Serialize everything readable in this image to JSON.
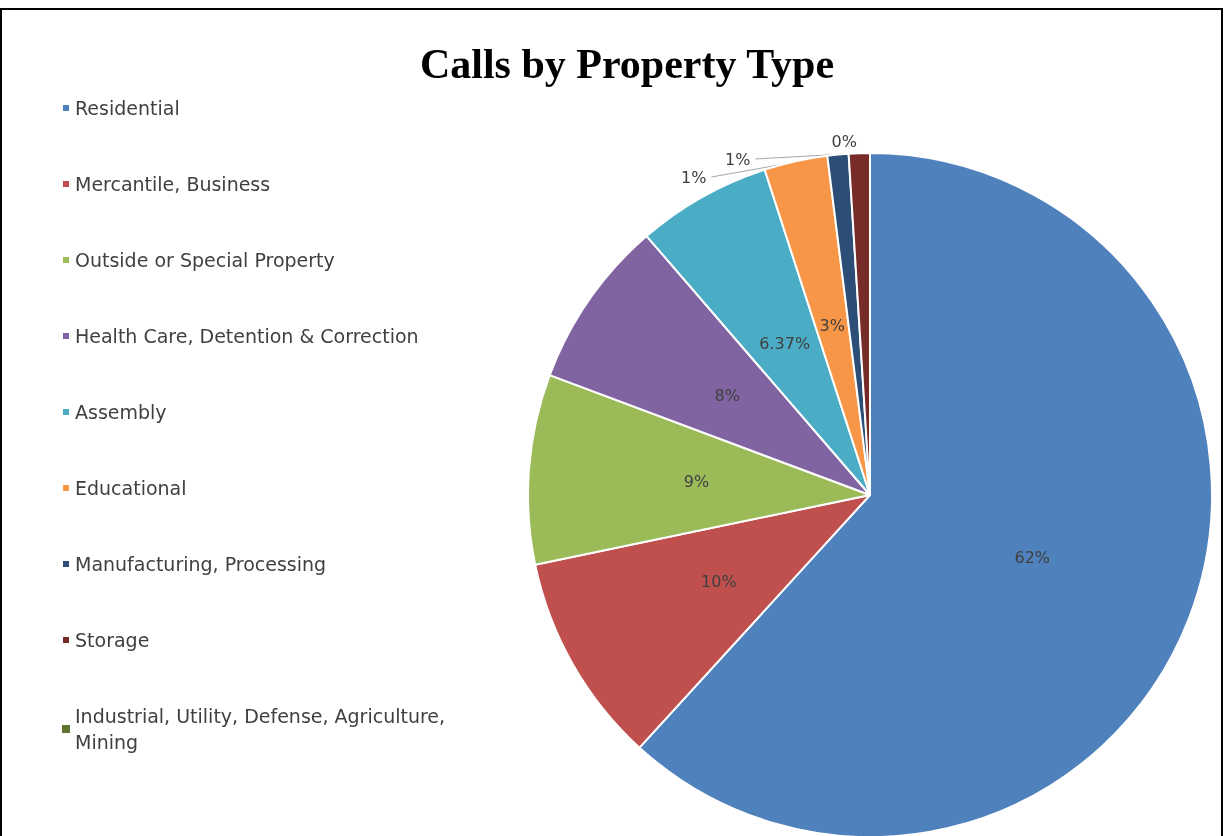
{
  "chart_data": {
    "type": "pie",
    "title": "Calls by Property Type",
    "categories": [
      "Residential",
      "Mercantile, Business",
      "Outside or Special Property",
      "Health Care, Detention & Correction",
      "Assembly",
      "Educational",
      "Manufacturing, Processing",
      "Storage",
      "Industrial, Utility, Defense, Agriculture, Mining"
    ],
    "values": [
      62,
      10,
      9,
      8,
      6.37,
      3,
      1,
      1,
      0
    ],
    "value_labels": [
      "62%",
      "10%",
      "9%",
      "8%",
      "6.37%",
      "3%",
      "1%",
      "1%",
      "0%"
    ],
    "colors": [
      "#4f81bd",
      "#c0504d",
      "#9bbb59",
      "#8064a2",
      "#4bacc6",
      "#f79646",
      "#2c4d75",
      "#772c2a",
      "#5f7530"
    ],
    "legend": "left"
  }
}
